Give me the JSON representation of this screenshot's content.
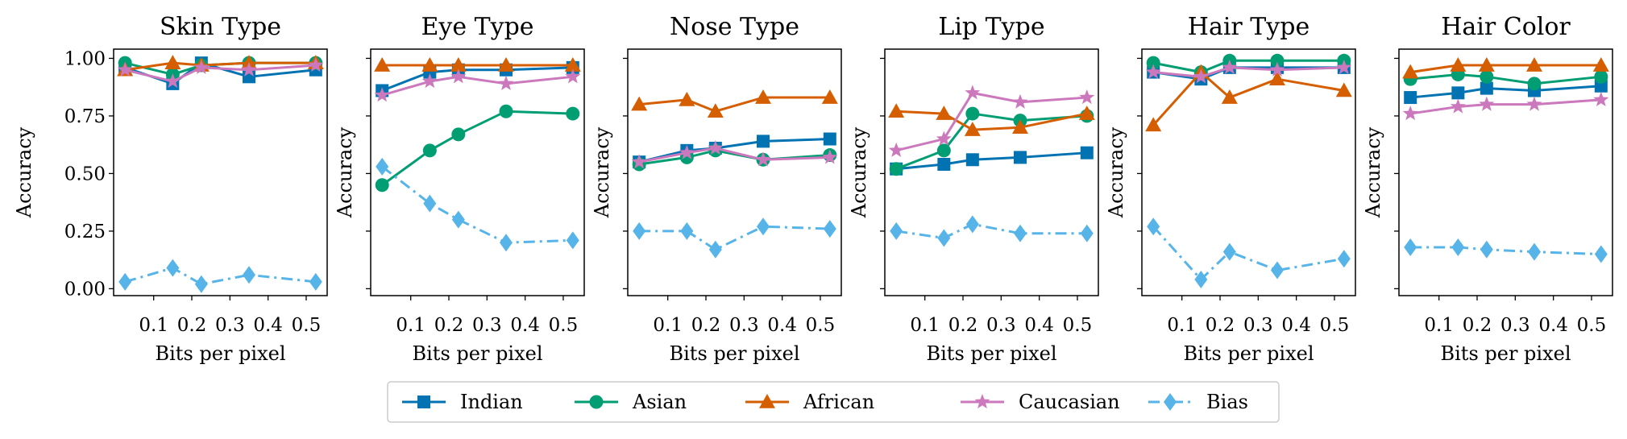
{
  "chart_data": {
    "type": "line",
    "x": [
      0.025,
      0.15,
      0.225,
      0.35,
      0.525
    ],
    "xlim": [
      -0.005,
      0.555
    ],
    "xticks": [
      0.1,
      0.2,
      0.3,
      0.4,
      0.5
    ],
    "xtick_labels": [
      "0.1",
      "0.2",
      "0.3",
      "0.4",
      "0.5"
    ],
    "ylim": [
      -0.03,
      1.04
    ],
    "yticks": [
      0.0,
      0.25,
      0.5,
      0.75,
      1.0
    ],
    "ytick_labels": [
      "0.00",
      "0.25",
      "0.50",
      "0.75",
      "1.00"
    ],
    "xlabel": "Bits per pixel",
    "ylabel": "Accuracy",
    "grid": false,
    "legend_position": "bottom-center",
    "series_styles": [
      {
        "name": "Indian",
        "color": "#0173b2",
        "marker": "square",
        "dash": "solid"
      },
      {
        "name": "Asian",
        "color": "#029e73",
        "marker": "circle",
        "dash": "solid"
      },
      {
        "name": "African",
        "color": "#d55e00",
        "marker": "triangle",
        "dash": "solid"
      },
      {
        "name": "Caucasian",
        "color": "#cc78bc",
        "marker": "star",
        "dash": "solid"
      },
      {
        "name": "Bias",
        "color": "#56b4e9",
        "marker": "diamond",
        "dash": "dashdot"
      }
    ],
    "panels": [
      {
        "title": "Skin Type",
        "show_yticklabels": true,
        "series": [
          {
            "name": "Indian",
            "values": [
              0.96,
              0.89,
              0.98,
              0.92,
              0.95
            ]
          },
          {
            "name": "Asian",
            "values": [
              0.98,
              0.93,
              0.97,
              0.98,
              0.98
            ]
          },
          {
            "name": "African",
            "values": [
              0.95,
              0.98,
              0.97,
              0.98,
              0.98
            ]
          },
          {
            "name": "Caucasian",
            "values": [
              0.95,
              0.9,
              0.96,
              0.95,
              0.97
            ]
          },
          {
            "name": "Bias",
            "values": [
              0.03,
              0.09,
              0.02,
              0.06,
              0.03
            ]
          }
        ]
      },
      {
        "title": "Eye Type",
        "show_yticklabels": false,
        "series": [
          {
            "name": "Indian",
            "values": [
              0.86,
              0.94,
              0.95,
              0.95,
              0.96
            ]
          },
          {
            "name": "Asian",
            "values": [
              0.45,
              0.6,
              0.67,
              0.77,
              0.76
            ]
          },
          {
            "name": "African",
            "values": [
              0.97,
              0.97,
              0.97,
              0.97,
              0.97
            ]
          },
          {
            "name": "Caucasian",
            "values": [
              0.84,
              0.9,
              0.92,
              0.89,
              0.92
            ]
          },
          {
            "name": "Bias",
            "values": [
              0.53,
              0.37,
              0.3,
              0.2,
              0.21
            ]
          }
        ]
      },
      {
        "title": "Nose Type",
        "show_yticklabels": false,
        "series": [
          {
            "name": "Indian",
            "values": [
              0.55,
              0.6,
              0.61,
              0.64,
              0.65
            ]
          },
          {
            "name": "Asian",
            "values": [
              0.54,
              0.57,
              0.6,
              0.56,
              0.58
            ]
          },
          {
            "name": "African",
            "values": [
              0.8,
              0.82,
              0.77,
              0.83,
              0.83
            ]
          },
          {
            "name": "Caucasian",
            "values": [
              0.55,
              0.59,
              0.61,
              0.56,
              0.57
            ]
          },
          {
            "name": "Bias",
            "values": [
              0.25,
              0.25,
              0.17,
              0.27,
              0.26
            ]
          }
        ]
      },
      {
        "title": "Lip Type",
        "show_yticklabels": false,
        "series": [
          {
            "name": "Indian",
            "values": [
              0.52,
              0.54,
              0.56,
              0.57,
              0.59
            ]
          },
          {
            "name": "Asian",
            "values": [
              0.52,
              0.6,
              0.76,
              0.73,
              0.75
            ]
          },
          {
            "name": "African",
            "values": [
              0.77,
              0.76,
              0.69,
              0.7,
              0.76
            ]
          },
          {
            "name": "Caucasian",
            "values": [
              0.6,
              0.65,
              0.85,
              0.81,
              0.83
            ]
          },
          {
            "name": "Bias",
            "values": [
              0.25,
              0.22,
              0.28,
              0.24,
              0.24
            ]
          }
        ]
      },
      {
        "title": "Hair Type",
        "show_yticklabels": false,
        "series": [
          {
            "name": "Indian",
            "values": [
              0.94,
              0.91,
              0.96,
              0.96,
              0.96
            ]
          },
          {
            "name": "Asian",
            "values": [
              0.98,
              0.94,
              0.99,
              0.99,
              0.99
            ]
          },
          {
            "name": "African",
            "values": [
              0.71,
              0.94,
              0.83,
              0.91,
              0.86
            ]
          },
          {
            "name": "Caucasian",
            "values": [
              0.94,
              0.92,
              0.96,
              0.95,
              0.96
            ]
          },
          {
            "name": "Bias",
            "values": [
              0.27,
              0.04,
              0.16,
              0.08,
              0.13
            ]
          }
        ]
      },
      {
        "title": "Hair Color",
        "show_yticklabels": false,
        "series": [
          {
            "name": "Indian",
            "values": [
              0.83,
              0.85,
              0.87,
              0.86,
              0.88
            ]
          },
          {
            "name": "Asian",
            "values": [
              0.91,
              0.93,
              0.92,
              0.89,
              0.92
            ]
          },
          {
            "name": "African",
            "values": [
              0.94,
              0.97,
              0.97,
              0.97,
              0.97
            ]
          },
          {
            "name": "Caucasian",
            "values": [
              0.76,
              0.79,
              0.8,
              0.8,
              0.82
            ]
          },
          {
            "name": "Bias",
            "values": [
              0.18,
              0.18,
              0.17,
              0.16,
              0.15
            ]
          }
        ]
      }
    ]
  }
}
